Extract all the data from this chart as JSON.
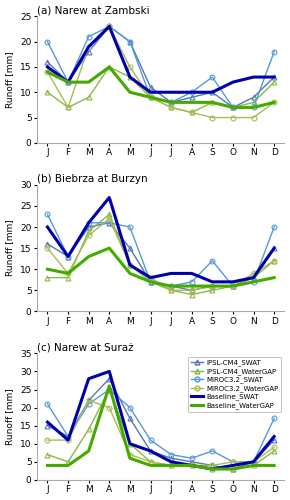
{
  "months": [
    "J",
    "F",
    "M",
    "A",
    "M",
    "J",
    "J",
    "A",
    "S",
    "O",
    "N",
    "D"
  ],
  "panels": [
    {
      "title": "(a) Narew at Zambski",
      "ylim": [
        0,
        25
      ],
      "yticks": [
        0,
        5,
        10,
        15,
        20,
        25
      ],
      "series": {
        "IPSL_SWAT": [
          16,
          12,
          18,
          23,
          20,
          11,
          8,
          9,
          10,
          7,
          9,
          13
        ],
        "IPSL_WaterGAP": [
          10,
          7,
          9,
          15,
          13,
          9,
          7,
          6,
          8,
          7,
          8,
          12
        ],
        "MIROC_SWAT": [
          20,
          12,
          21,
          23,
          20,
          9,
          8,
          10,
          13,
          7,
          7,
          18
        ],
        "MIROC_WaterGAP": [
          14,
          7,
          19,
          23,
          15,
          9,
          7,
          6,
          5,
          5,
          5,
          8
        ],
        "Baseline_SWAT": [
          15,
          12,
          19,
          23,
          13,
          10,
          10,
          10,
          10,
          12,
          13,
          13
        ],
        "Baseline_WaterGAP": [
          14,
          12,
          12,
          15,
          10,
          9,
          8,
          8,
          8,
          7,
          7,
          8
        ]
      }
    },
    {
      "title": "(b) Biebrza at Burzyn",
      "ylim": [
        0,
        30
      ],
      "yticks": [
        0,
        5,
        10,
        15,
        20,
        25,
        30
      ],
      "series": {
        "IPSL_SWAT": [
          16,
          13,
          20,
          21,
          15,
          7,
          6,
          5,
          6,
          6,
          8,
          15
        ],
        "IPSL_WaterGAP": [
          8,
          8,
          19,
          23,
          11,
          7,
          5,
          4,
          5,
          6,
          8,
          12
        ],
        "MIROC_SWAT": [
          23,
          13,
          21,
          21,
          20,
          7,
          6,
          7,
          12,
          6,
          7,
          20
        ],
        "MIROC_WaterGAP": [
          15,
          9,
          18,
          22,
          11,
          8,
          5,
          5,
          6,
          6,
          9,
          12
        ],
        "Baseline_SWAT": [
          20,
          13,
          21,
          27,
          11,
          8,
          9,
          9,
          7,
          7,
          8,
          15
        ],
        "Baseline_WaterGAP": [
          10,
          9,
          13,
          15,
          9,
          7,
          6,
          6,
          6,
          6,
          7,
          8
        ]
      }
    },
    {
      "title": "(c) Narew at Suraż",
      "ylim": [
        0,
        35
      ],
      "yticks": [
        0,
        5,
        10,
        15,
        20,
        25,
        30,
        35
      ],
      "series": {
        "IPSL_SWAT": [
          15,
          12,
          22,
          28,
          17,
          8,
          6,
          5,
          4,
          3,
          5,
          11
        ],
        "IPSL_WaterGAP": [
          7,
          5,
          14,
          25,
          10,
          5,
          4,
          4,
          3,
          3,
          4,
          8
        ],
        "MIROC_SWAT": [
          21,
          12,
          21,
          25,
          20,
          11,
          7,
          6,
          8,
          5,
          5,
          17
        ],
        "MIROC_WaterGAP": [
          11,
          11,
          22,
          20,
          7,
          5,
          4,
          4,
          4,
          5,
          5,
          9
        ],
        "Baseline_SWAT": [
          16,
          11,
          28,
          30,
          10,
          8,
          5,
          4,
          3,
          4,
          5,
          12
        ],
        "Baseline_WaterGAP": [
          4,
          4,
          8,
          26,
          6,
          4,
          4,
          4,
          3,
          3,
          4,
          4
        ]
      }
    }
  ],
  "ipsl_swat_color": "#5577bb",
  "ipsl_watergap_color": "#88bb44",
  "miroc_swat_color": "#5599dd",
  "miroc_watergap_color": "#aabb55",
  "baseline_swat_color": "#0000aa",
  "baseline_watergap_color": "#44aa00",
  "legend_labels": [
    "IPSL-CM4_SWAT",
    "IPSL-CM4_WaterGAP",
    "MIROC3.2_SWAT",
    "MIROC3.2_WaterGAP",
    "Baseline_SWAT",
    "Baseline_WaterGAP"
  ]
}
